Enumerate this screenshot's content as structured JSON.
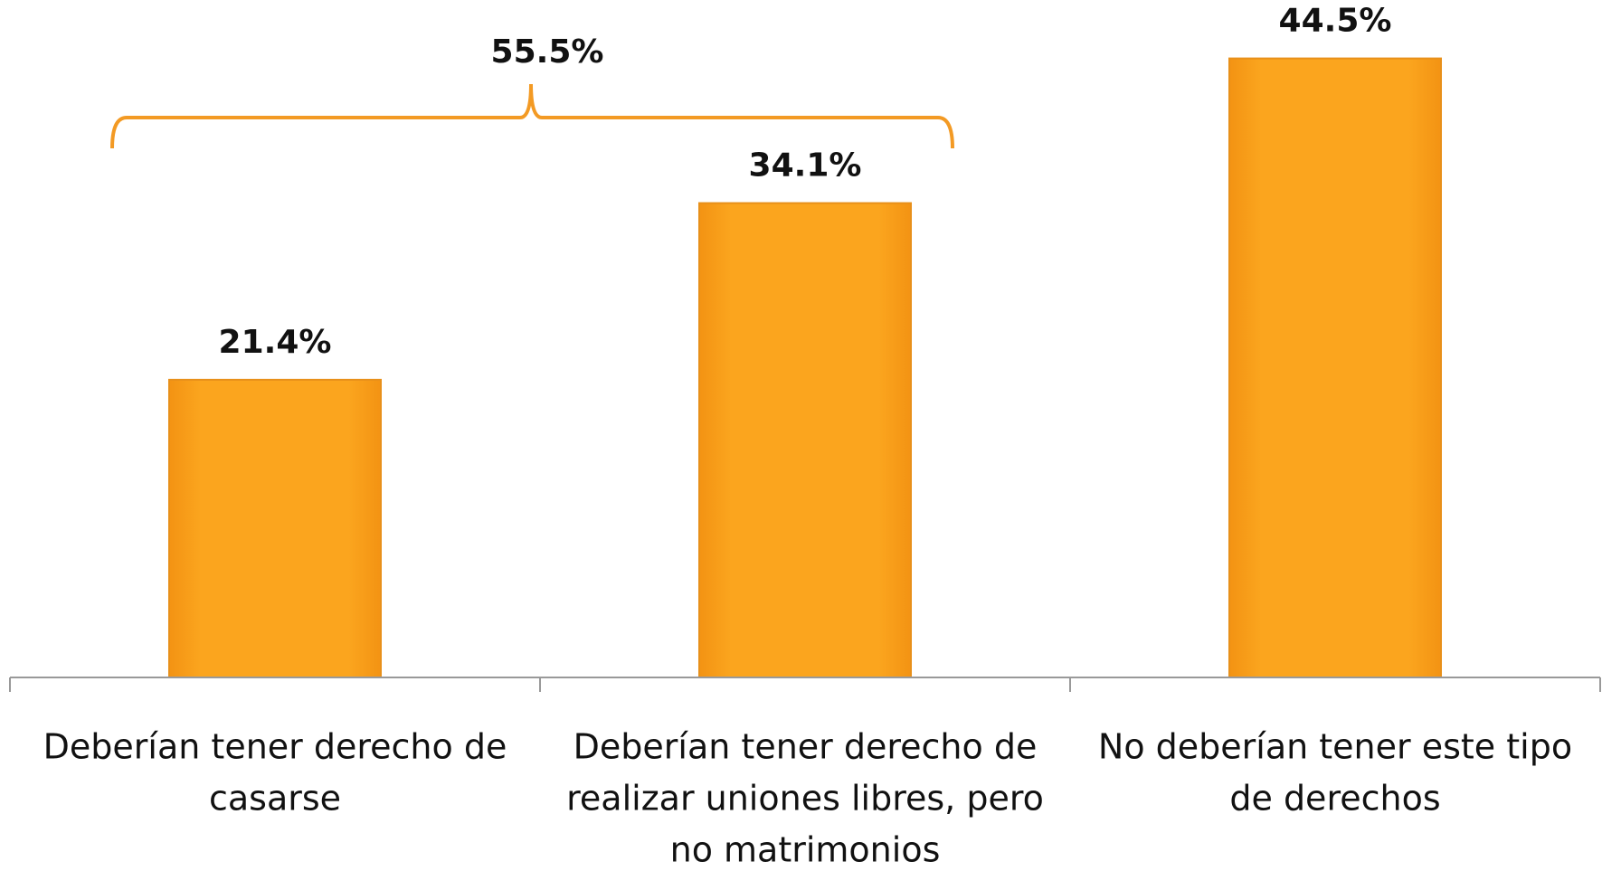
{
  "chart_data": {
    "type": "bar",
    "categories": [
      [
        "Deberían tener derecho de",
        "casarse"
      ],
      [
        "Deberían tener derecho de",
        "realizar uniones libres, pero",
        "no matrimonios"
      ],
      [
        "No deberían tener este tipo",
        "de derechos"
      ]
    ],
    "values": [
      21.4,
      34.1,
      44.5
    ],
    "value_labels": [
      "21.4%",
      "34.1%",
      "44.5%"
    ],
    "color": "#F8A01A",
    "ylim": [
      0,
      48.7
    ],
    "annotation": "55.5%"
  }
}
